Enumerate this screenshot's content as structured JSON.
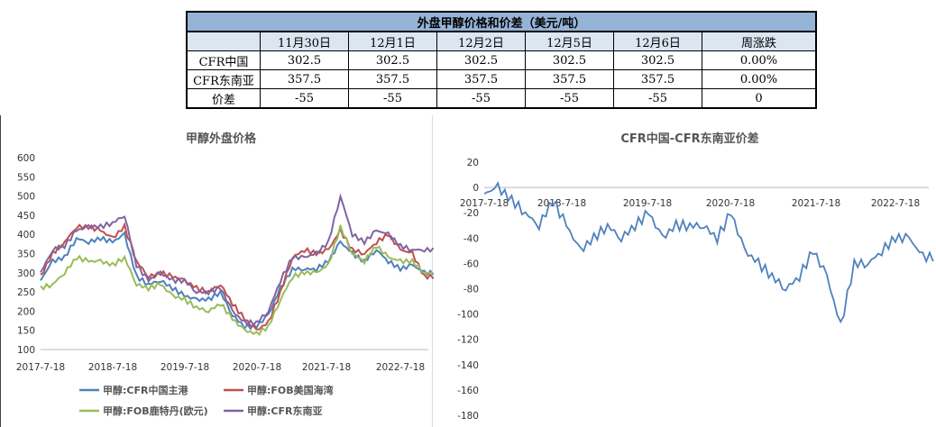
{
  "table": {
    "title": "外盘甲醇价格和价差（美元/吨）",
    "headers": [
      "",
      "11月30日",
      "12月1日",
      "12月2日",
      "12月5日",
      "12月6日",
      "周涨跌"
    ],
    "rows": [
      [
        "CFR中国",
        "302.5",
        "302.5",
        "302.5",
        "302.5",
        "302.5",
        "0.00%"
      ],
      [
        "CFR东南亚",
        "357.5",
        "357.5",
        "357.5",
        "357.5",
        "357.5",
        "0.00%"
      ],
      [
        "价差",
        "-55",
        "-55",
        "-55",
        "-55",
        "-55",
        "0"
      ]
    ]
  },
  "chart_data": [
    {
      "type": "line",
      "title": "甲醇外盘价格",
      "ylim": [
        100,
        600
      ],
      "yticks": [
        100,
        150,
        200,
        250,
        300,
        350,
        400,
        450,
        500,
        550,
        600
      ],
      "xticks": [
        "2017-7-18",
        "2018-7-18",
        "2019-7-18",
        "2020-7-18",
        "2021-7-18",
        "2022-7-18"
      ],
      "legend": "bottom",
      "x": [
        "2017-07",
        "2017-09",
        "2017-11",
        "2018-01",
        "2018-03",
        "2018-05",
        "2018-07",
        "2018-09",
        "2018-11",
        "2019-01",
        "2019-03",
        "2019-05",
        "2019-07",
        "2019-09",
        "2019-11",
        "2020-01",
        "2020-03",
        "2020-05",
        "2020-07",
        "2020-09",
        "2020-11",
        "2021-01",
        "2021-03",
        "2021-05",
        "2021-07",
        "2021-09",
        "2021-11",
        "2022-01",
        "2022-03",
        "2022-05",
        "2022-07",
        "2022-09",
        "2022-11"
      ],
      "series": [
        {
          "name": "甲醇:CFR中国主港",
          "color": "#4f81bd",
          "values": [
            280,
            330,
            340,
            390,
            380,
            390,
            380,
            400,
            290,
            270,
            280,
            260,
            240,
            230,
            230,
            250,
            190,
            160,
            160,
            190,
            260,
            310,
            310,
            310,
            330,
            380,
            350,
            330,
            360,
            330,
            310,
            320,
            300
          ]
        },
        {
          "name": "甲醇:FOB美国海湾",
          "color": "#c0504d",
          "values": [
            290,
            350,
            380,
            420,
            420,
            410,
            390,
            420,
            330,
            290,
            300,
            290,
            280,
            260,
            250,
            270,
            220,
            180,
            150,
            170,
            250,
            340,
            360,
            350,
            360,
            410,
            360,
            350,
            380,
            400,
            360,
            350,
            290
          ]
        },
        {
          "name": "甲醇:FOB鹿特丹(欧元)",
          "color": "#9bbb59",
          "values": [
            260,
            270,
            300,
            340,
            330,
            330,
            320,
            340,
            270,
            260,
            270,
            240,
            230,
            210,
            200,
            220,
            180,
            150,
            140,
            160,
            230,
            290,
            300,
            300,
            320,
            420,
            350,
            330,
            370,
            340,
            330,
            330,
            300
          ]
        },
        {
          "name": "甲醇:CFR东南亚",
          "color": "#8064a2",
          "values": [
            300,
            360,
            370,
            410,
            420,
            420,
            430,
            450,
            320,
            280,
            300,
            280,
            280,
            250,
            250,
            260,
            200,
            170,
            170,
            200,
            280,
            340,
            340,
            350,
            380,
            500,
            400,
            380,
            410,
            400,
            370,
            360,
            360
          ]
        }
      ]
    },
    {
      "type": "line",
      "title": "CFR中国-CFR东南亚价差",
      "ylim": [
        -180,
        20
      ],
      "yticks": [
        20,
        0,
        -20,
        -40,
        -60,
        -80,
        -100,
        -120,
        -140,
        -160,
        -180
      ],
      "xticks": [
        "2017-7-18",
        "2018-7-18",
        "2019-7-18",
        "2020-7-18",
        "2021-7-18",
        "2022-7-18"
      ],
      "x": [
        "2017-07",
        "2017-09",
        "2017-11",
        "2018-01",
        "2018-03",
        "2018-05",
        "2018-07",
        "2018-09",
        "2018-11",
        "2019-01",
        "2019-03",
        "2019-05",
        "2019-07",
        "2019-09",
        "2019-11",
        "2020-01",
        "2020-03",
        "2020-05",
        "2020-07",
        "2020-09",
        "2020-11",
        "2021-01",
        "2021-03",
        "2021-05",
        "2021-07",
        "2021-09",
        "2021-11",
        "2022-01",
        "2022-03",
        "2022-05",
        "2022-07",
        "2022-09",
        "2022-11"
      ],
      "series": [
        {
          "color": "#4f81bd",
          "values": [
            -5,
            0,
            -10,
            -20,
            -30,
            -10,
            -30,
            -50,
            -40,
            -30,
            -40,
            -30,
            -20,
            -40,
            -30,
            -30,
            -30,
            -40,
            -20,
            -50,
            -60,
            -70,
            -80,
            -70,
            -50,
            -70,
            -110,
            -60,
            -60,
            -50,
            -40,
            -40,
            -55
          ]
        }
      ]
    }
  ]
}
